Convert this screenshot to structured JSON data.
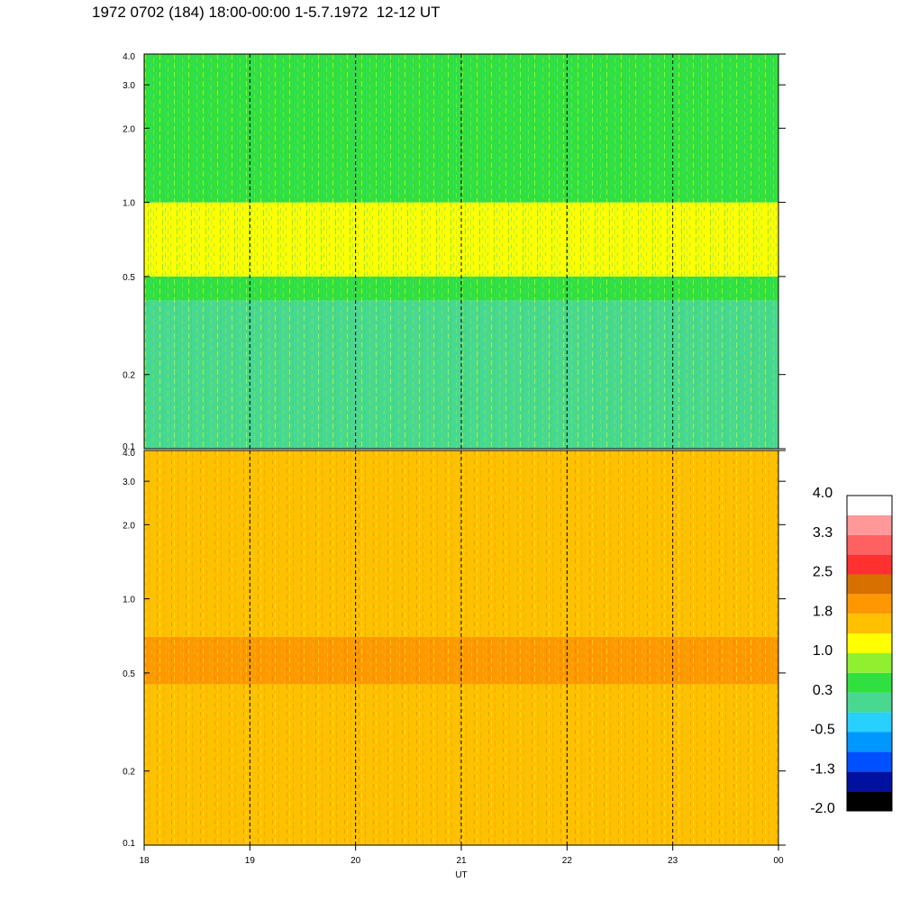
{
  "title": "1972 0702 (184) 18:00-00:00 1-5.7.1972  12-12 UT",
  "chart_data": {
    "type": "heatmap",
    "xlabel": "UT",
    "x_ticks": [
      "18",
      "19",
      "20",
      "21",
      "22",
      "23",
      "00"
    ],
    "xlim": [
      18,
      24
    ],
    "y_scale": "log",
    "ylim": [
      0.1,
      4.0
    ],
    "y_ticks": [
      "4.0",
      "3.0",
      "2.0",
      "1.0",
      "0.5",
      "0.2",
      "0.1"
    ],
    "y_tick_values": [
      4.0,
      3.0,
      2.0,
      1.0,
      0.5,
      0.2,
      0.1
    ],
    "dashed_vlines": [
      19,
      20,
      21,
      22,
      23
    ],
    "panels": [
      {
        "name": "upper",
        "dominant_levels": [
          {
            "y_range": [
              0.1,
              0.4
            ],
            "value": 0.0
          },
          {
            "y_range": [
              0.4,
              0.5
            ],
            "value": 0.6
          },
          {
            "y_range": [
              0.5,
              1.0
            ],
            "value": 1.1
          },
          {
            "y_range": [
              1.0,
              4.0
            ],
            "value": 0.4
          }
        ]
      },
      {
        "name": "lower",
        "dominant_levels": [
          {
            "y_range": [
              0.1,
              0.45
            ],
            "value": 1.6
          },
          {
            "y_range": [
              0.45,
              0.7
            ],
            "value": 2.0
          },
          {
            "y_range": [
              0.7,
              4.0
            ],
            "value": 1.5
          }
        ]
      }
    ],
    "colorbar": {
      "min": -2.0,
      "max": 4.0,
      "tick_labels": [
        "4.0",
        "3.3",
        "2.5",
        "1.8",
        "1.0",
        "0.3",
        "-0.5",
        "-1.3",
        "-2.0"
      ],
      "colors": [
        "#000000",
        "#0010a0",
        "#0050ff",
        "#0098ff",
        "#28d0ff",
        "#48d890",
        "#30e040",
        "#90f030",
        "#ffff00",
        "#ffc000",
        "#ff9800",
        "#d87000",
        "#ff3030",
        "#ff6060",
        "#ff9898",
        "#ffffff"
      ]
    }
  }
}
